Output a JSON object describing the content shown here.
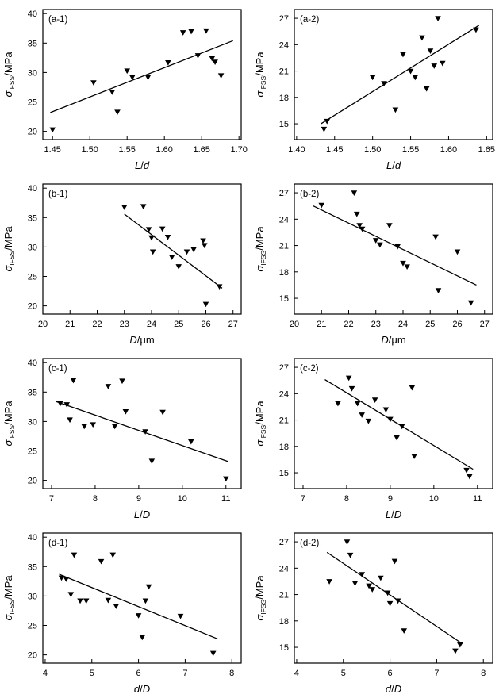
{
  "figure": {
    "marker": "triangle-down",
    "ink_color": "#000000",
    "background_color": "#ffffff"
  },
  "chart_data": [
    {
      "type": "scatter",
      "id": "a-1",
      "corner_label": "(a-1)",
      "xlabel": "L/d",
      "ylabel": {
        "sym": "σ",
        "sub": "IFSS",
        "unit": "/MPa"
      },
      "xlim": [
        1.437,
        1.703
      ],
      "ylim": [
        18.6,
        40.7
      ],
      "xticks": [
        "1.45",
        "1.50",
        "1.55",
        "1.60",
        "1.65",
        "1.70"
      ],
      "yticks": [
        "20",
        "25",
        "30",
        "35",
        "40"
      ],
      "points": [
        [
          1.45,
          20.3
        ],
        [
          1.505,
          28.3
        ],
        [
          1.53,
          26.7
        ],
        [
          1.537,
          23.3
        ],
        [
          1.55,
          30.3
        ],
        [
          1.557,
          29.2
        ],
        [
          1.578,
          29.2
        ],
        [
          1.605,
          31.7
        ],
        [
          1.625,
          36.8
        ],
        [
          1.636,
          37.0
        ],
        [
          1.645,
          32.9
        ],
        [
          1.656,
          37.1
        ],
        [
          1.664,
          32.4
        ],
        [
          1.668,
          31.8
        ],
        [
          1.676,
          29.5
        ]
      ],
      "trend": [
        1.447,
        23.2,
        1.692,
        35.4
      ]
    },
    {
      "type": "scatter",
      "id": "a-2",
      "corner_label": "(a-2)",
      "xlabel": "L/d",
      "ylabel": {
        "sym": "σ",
        "sub": "IFSS",
        "unit": "/MPa"
      },
      "xlim": [
        1.397,
        1.658
      ],
      "ylim": [
        13.2,
        28.0
      ],
      "xticks": [
        "1.40",
        "1.45",
        "1.50",
        "1.55",
        "1.60",
        "1.65"
      ],
      "yticks": [
        "15",
        "18",
        "21",
        "24",
        "27"
      ],
      "points": [
        [
          1.436,
          14.4
        ],
        [
          1.44,
          15.3
        ],
        [
          1.5,
          20.3
        ],
        [
          1.515,
          19.6
        ],
        [
          1.53,
          16.6
        ],
        [
          1.54,
          22.9
        ],
        [
          1.55,
          21.0
        ],
        [
          1.556,
          20.3
        ],
        [
          1.565,
          24.8
        ],
        [
          1.571,
          19.0
        ],
        [
          1.576,
          23.3
        ],
        [
          1.581,
          21.6
        ],
        [
          1.586,
          27.0
        ],
        [
          1.592,
          21.9
        ],
        [
          1.636,
          25.7
        ]
      ],
      "trend": [
        1.432,
        15.0,
        1.64,
        26.2
      ]
    },
    {
      "type": "scatter",
      "id": "b-1",
      "corner_label": "(b-1)",
      "xlabel": "D/μm",
      "ylabel": {
        "sym": "σ",
        "sub": "IFSS",
        "unit": "/MPa"
      },
      "xlim": [
        20.0,
        27.3
      ],
      "ylim": [
        18.6,
        40.7
      ],
      "xticks": [
        "20",
        "21",
        "22",
        "23",
        "24",
        "25",
        "26",
        "27"
      ],
      "yticks": [
        "20",
        "25",
        "30",
        "35",
        "40"
      ],
      "points": [
        [
          23.0,
          36.8
        ],
        [
          23.7,
          36.9
        ],
        [
          23.9,
          33.0
        ],
        [
          24.0,
          31.6
        ],
        [
          24.05,
          29.2
        ],
        [
          24.4,
          33.1
        ],
        [
          24.6,
          31.7
        ],
        [
          24.75,
          28.3
        ],
        [
          25.0,
          26.7
        ],
        [
          25.3,
          29.2
        ],
        [
          25.55,
          29.6
        ],
        [
          25.9,
          31.1
        ],
        [
          25.95,
          30.3
        ],
        [
          26.0,
          20.3
        ],
        [
          26.5,
          23.3
        ]
      ],
      "trend": [
        23.0,
        35.6,
        26.6,
        23.0
      ]
    },
    {
      "type": "scatter",
      "id": "b-2",
      "corner_label": "(b-2)",
      "xlabel": "D/μm",
      "ylabel": {
        "sym": "σ",
        "sub": "IFSS",
        "unit": "/MPa"
      },
      "xlim": [
        20.0,
        27.3
      ],
      "ylim": [
        13.2,
        28.0
      ],
      "xticks": [
        "20",
        "21",
        "22",
        "23",
        "24",
        "25",
        "26",
        "27"
      ],
      "yticks": [
        "15",
        "18",
        "21",
        "24",
        "27"
      ],
      "points": [
        [
          21.0,
          25.6
        ],
        [
          22.2,
          27.0
        ],
        [
          22.3,
          24.6
        ],
        [
          22.4,
          23.3
        ],
        [
          22.5,
          22.9
        ],
        [
          23.0,
          21.6
        ],
        [
          23.15,
          21.1
        ],
        [
          23.5,
          23.3
        ],
        [
          23.8,
          20.9
        ],
        [
          24.0,
          19.0
        ],
        [
          24.15,
          18.6
        ],
        [
          25.2,
          22.0
        ],
        [
          25.3,
          15.9
        ],
        [
          26.0,
          20.3
        ],
        [
          26.5,
          14.5
        ]
      ],
      "trend": [
        20.7,
        25.5,
        26.7,
        16.5
      ]
    },
    {
      "type": "scatter",
      "id": "c-1",
      "corner_label": "(c-1)",
      "xlabel": "L/D",
      "ylabel": {
        "sym": "σ",
        "sub": "IFSS",
        "unit": "/MPa"
      },
      "xlim": [
        6.8,
        11.35
      ],
      "ylim": [
        18.6,
        40.7
      ],
      "xticks": [
        "7",
        "8",
        "9",
        "10",
        "11"
      ],
      "yticks": [
        "20",
        "25",
        "30",
        "35",
        "40"
      ],
      "points": [
        [
          7.2,
          33.1
        ],
        [
          7.35,
          32.9
        ],
        [
          7.42,
          30.3
        ],
        [
          7.5,
          37.0
        ],
        [
          7.75,
          29.2
        ],
        [
          7.95,
          29.5
        ],
        [
          8.3,
          36.0
        ],
        [
          8.45,
          29.2
        ],
        [
          8.62,
          36.9
        ],
        [
          8.7,
          31.7
        ],
        [
          9.15,
          28.3
        ],
        [
          9.3,
          23.3
        ],
        [
          9.55,
          31.6
        ],
        [
          10.2,
          26.6
        ],
        [
          11.0,
          20.3
        ]
      ],
      "trend": [
        7.1,
        33.4,
        11.05,
        23.2
      ]
    },
    {
      "type": "scatter",
      "id": "c-2",
      "corner_label": "(c-2)",
      "xlabel": "L/D",
      "ylabel": {
        "sym": "σ",
        "sub": "IFSS",
        "unit": "/MPa"
      },
      "xlim": [
        6.8,
        11.35
      ],
      "ylim": [
        13.2,
        28.0
      ],
      "xticks": [
        "7",
        "8",
        "9",
        "10",
        "11"
      ],
      "yticks": [
        "15",
        "18",
        "21",
        "24",
        "27"
      ],
      "points": [
        [
          7.8,
          22.9
        ],
        [
          8.05,
          25.8
        ],
        [
          8.12,
          24.6
        ],
        [
          8.25,
          22.9
        ],
        [
          8.35,
          21.6
        ],
        [
          8.5,
          20.9
        ],
        [
          8.65,
          23.3
        ],
        [
          8.9,
          22.2
        ],
        [
          9.0,
          21.1
        ],
        [
          9.15,
          19.0
        ],
        [
          9.27,
          20.3
        ],
        [
          9.5,
          24.7
        ],
        [
          9.55,
          16.9
        ],
        [
          10.75,
          15.3
        ],
        [
          10.82,
          14.6
        ]
      ],
      "trend": [
        7.5,
        25.6,
        10.9,
        15.4
      ]
    },
    {
      "type": "scatter",
      "id": "d-1",
      "corner_label": "(d-1)",
      "xlabel": "d/D",
      "ylabel": {
        "sym": "σ",
        "sub": "IFSS",
        "unit": "/MPa"
      },
      "xlim": [
        3.95,
        8.2
      ],
      "ylim": [
        18.6,
        40.7
      ],
      "xticks": [
        "4",
        "5",
        "6",
        "7",
        "8"
      ],
      "yticks": [
        "20",
        "25",
        "30",
        "35",
        "40"
      ],
      "points": [
        [
          4.35,
          33.1
        ],
        [
          4.45,
          32.9
        ],
        [
          4.55,
          30.3
        ],
        [
          4.62,
          37.0
        ],
        [
          4.75,
          29.2
        ],
        [
          4.88,
          29.2
        ],
        [
          5.2,
          35.9
        ],
        [
          5.35,
          29.3
        ],
        [
          5.45,
          37.0
        ],
        [
          5.52,
          28.3
        ],
        [
          6.0,
          26.7
        ],
        [
          6.08,
          23.0
        ],
        [
          6.15,
          29.2
        ],
        [
          6.22,
          31.6
        ],
        [
          6.9,
          26.6
        ],
        [
          7.6,
          20.3
        ]
      ],
      "trend": [
        4.3,
        33.7,
        7.7,
        22.7
      ]
    },
    {
      "type": "scatter",
      "id": "d-2",
      "corner_label": "(d-2)",
      "xlabel": "d/D",
      "ylabel": {
        "sym": "σ",
        "sub": "IFSS",
        "unit": "/MPa"
      },
      "xlim": [
        3.95,
        8.2
      ],
      "ylim": [
        13.2,
        28.0
      ],
      "xticks": [
        "4",
        "5",
        "6",
        "7",
        "8"
      ],
      "yticks": [
        "15",
        "18",
        "21",
        "24",
        "27"
      ],
      "points": [
        [
          4.7,
          22.5
        ],
        [
          5.08,
          27.0
        ],
        [
          5.15,
          25.5
        ],
        [
          5.25,
          22.3
        ],
        [
          5.4,
          23.3
        ],
        [
          5.55,
          22.0
        ],
        [
          5.62,
          21.6
        ],
        [
          5.8,
          22.9
        ],
        [
          5.95,
          21.2
        ],
        [
          6.0,
          20.0
        ],
        [
          6.1,
          24.8
        ],
        [
          6.17,
          20.3
        ],
        [
          6.3,
          16.9
        ],
        [
          7.4,
          14.6
        ],
        [
          7.5,
          15.3
        ]
      ],
      "trend": [
        4.65,
        25.8,
        7.55,
        15.4
      ]
    }
  ]
}
